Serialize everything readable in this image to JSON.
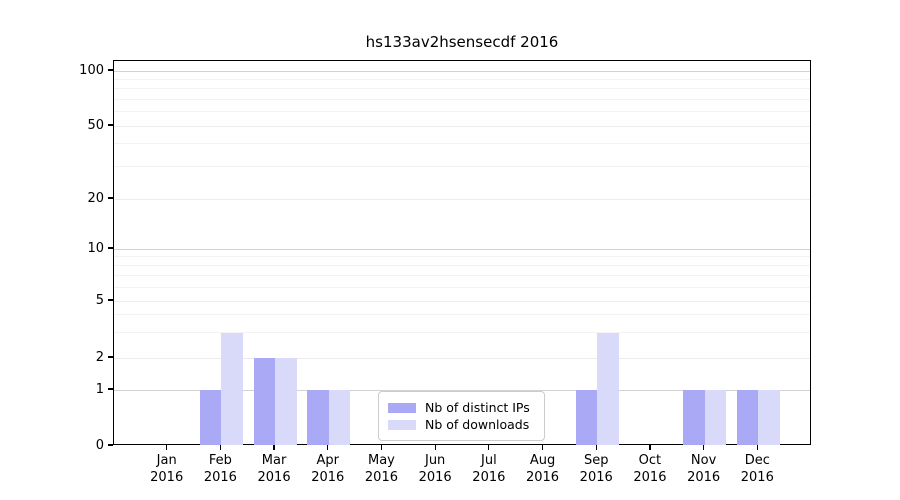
{
  "chart_data": {
    "type": "bar",
    "title": "hs133av2hsensecdf 2016",
    "xlabel": "",
    "ylabel": "",
    "yscale": "symlog",
    "ylim": [
      0,
      100
    ],
    "yticks": [
      0,
      1,
      2,
      5,
      10,
      20,
      50,
      100
    ],
    "ytick_labels": [
      "0",
      "1",
      "2",
      "5",
      "10",
      "20",
      "50",
      "100"
    ],
    "minor_grid_values": [
      3,
      4,
      6,
      7,
      8,
      9,
      30,
      40,
      60,
      70,
      80,
      90
    ],
    "mid_grid_values": [
      2,
      5,
      20,
      50
    ],
    "major_grid_values": [
      1,
      10,
      100
    ],
    "grid": true,
    "legend_position": "lower center",
    "categories": [
      "Jan 2016",
      "Feb 2016",
      "Mar 2016",
      "Apr 2016",
      "May 2016",
      "Jun 2016",
      "Jul 2016",
      "Aug 2016",
      "Sep 2016",
      "Oct 2016",
      "Nov 2016",
      "Dec 2016"
    ],
    "series": [
      {
        "name": "Nb of distinct IPs",
        "color": "#a9a9f6",
        "values": [
          0,
          1,
          2,
          1,
          0,
          0,
          0,
          0,
          1,
          0,
          1,
          1
        ]
      },
      {
        "name": "Nb of downloads",
        "color": "#d9d9f9",
        "values": [
          0,
          3,
          2,
          1,
          0,
          0,
          0,
          0,
          3,
          0,
          1,
          1
        ]
      }
    ]
  }
}
